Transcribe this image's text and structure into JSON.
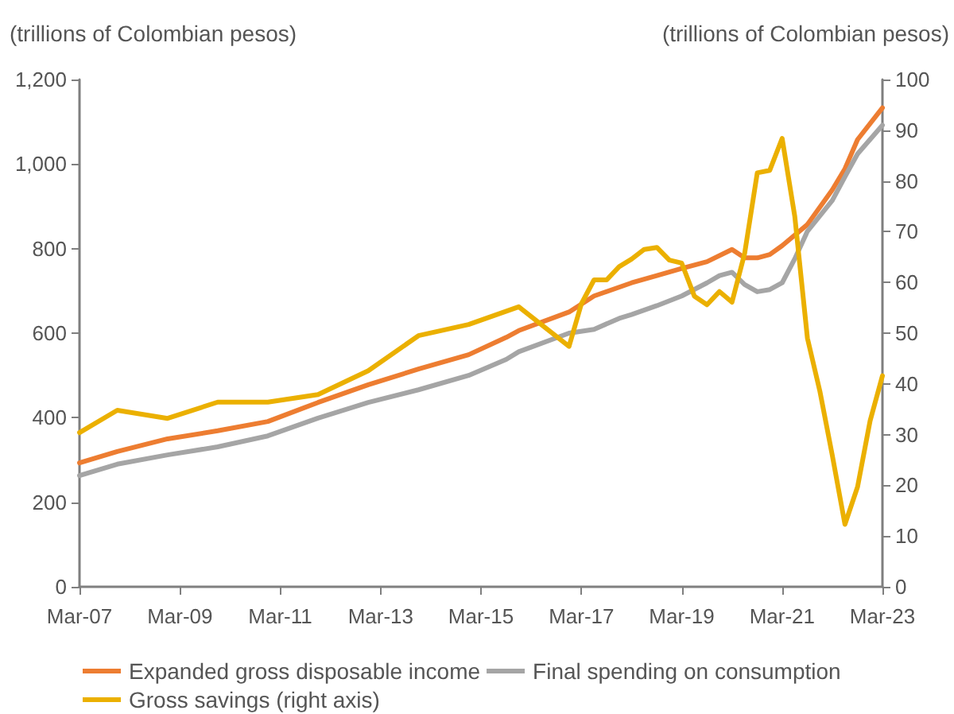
{
  "chart_data": {
    "type": "line",
    "ylabel": "(trillions of Colombian pesos)",
    "y2label": "(trillions of Colombian pesos)",
    "xlim": [
      "2007-03",
      "2023-03"
    ],
    "xticks": [
      {
        "value": "2007-03",
        "label": "Mar-07"
      },
      {
        "value": "2009-03",
        "label": "Mar-09"
      },
      {
        "value": "2011-03",
        "label": "Mar-11"
      },
      {
        "value": "2013-03",
        "label": "Mar-13"
      },
      {
        "value": "2015-03",
        "label": "Mar-15"
      },
      {
        "value": "2017-03",
        "label": "Mar-17"
      },
      {
        "value": "2019-03",
        "label": "Mar-19"
      },
      {
        "value": "2021-03",
        "label": "Mar-21"
      },
      {
        "value": "2023-03",
        "label": "Mar-23"
      }
    ],
    "ylim": [
      0,
      1200
    ],
    "yticks": [
      0,
      200,
      400,
      600,
      800,
      {
        "value": 1000,
        "label": "1,000"
      },
      {
        "value": 1200,
        "label": "1,200"
      }
    ],
    "y2lim": [
      0,
      100
    ],
    "y2ticks": [
      0,
      10,
      20,
      30,
      40,
      50,
      60,
      70,
      80,
      90,
      100
    ],
    "grid": false,
    "legend": "bottom",
    "marker": "none",
    "line_style": "solid",
    "series": [
      {
        "name": "Expanded gross disposable income",
        "color": "#ed7d31",
        "x": [
          "2007-03",
          "2007-12",
          "2008-12",
          "2009-12",
          "2010-12",
          "2011-12",
          "2012-12",
          "2013-12",
          "2014-12",
          "2015-09",
          "2015-12",
          "2016-12",
          "2017-06",
          "2018-03",
          "2018-09",
          "2019-03",
          "2019-09",
          "2020-03",
          "2020-06",
          "2020-09",
          "2020-12",
          "2021-03",
          "2021-09",
          "2022-03",
          "2022-06",
          "2022-09",
          "2023-03"
        ],
        "values": [
          293,
          320,
          350,
          369,
          391,
          436,
          478,
          515,
          549,
          590,
          606,
          650,
          688,
          719,
          736,
          753,
          769,
          798,
          778,
          778,
          786,
          807,
          857,
          939,
          989,
          1058,
          1133
        ]
      },
      {
        "name": "Final spending on consumption",
        "color": "#a5a5a5",
        "x": [
          "2007-03",
          "2007-12",
          "2008-12",
          "2009-12",
          "2010-12",
          "2011-12",
          "2012-12",
          "2013-12",
          "2014-12",
          "2015-09",
          "2015-12",
          "2016-12",
          "2017-06",
          "2017-12",
          "2018-03",
          "2018-09",
          "2019-03",
          "2019-09",
          "2019-12",
          "2020-03",
          "2020-06",
          "2020-09",
          "2020-12",
          "2021-03",
          "2021-06",
          "2021-09",
          "2022-03",
          "2022-06",
          "2022-09",
          "2023-03"
        ],
        "values": [
          263,
          290,
          312,
          331,
          357,
          399,
          436,
          466,
          500,
          538,
          556,
          600,
          609,
          635,
          644,
          665,
          688,
          719,
          736,
          744,
          715,
          698,
          703,
          719,
          776,
          841,
          914,
          970,
          1024,
          1092
        ]
      },
      {
        "name": "Gross savings (right axis)",
        "color": "#ebb000",
        "axis": "y2",
        "x": [
          "2007-03",
          "2007-12",
          "2008-12",
          "2009-12",
          "2010-12",
          "2011-12",
          "2012-12",
          "2013-12",
          "2014-12",
          "2015-12",
          "2016-12",
          "2017-03",
          "2017-06",
          "2017-09",
          "2017-12",
          "2018-03",
          "2018-06",
          "2018-09",
          "2018-12",
          "2019-03",
          "2019-06",
          "2019-09",
          "2019-12",
          "2020-03",
          "2020-06",
          "2020-09",
          "2020-12",
          "2021-03",
          "2021-06",
          "2021-09",
          "2021-12",
          "2022-03",
          "2022-06",
          "2022-09",
          "2022-12",
          "2023-03"
        ],
        "values": [
          30.4,
          34.8,
          33.2,
          36.4,
          36.4,
          37.9,
          42.6,
          49.5,
          51.7,
          55.2,
          47.4,
          55.8,
          60.5,
          60.5,
          63.1,
          64.6,
          66.5,
          66.9,
          64.4,
          63.8,
          57.3,
          55.6,
          58.2,
          56.1,
          65.7,
          81.6,
          82.1,
          88.4,
          73.0,
          49.0,
          38.5,
          25.9,
          12.3,
          19.7,
          32.7,
          41.6
        ]
      }
    ]
  }
}
